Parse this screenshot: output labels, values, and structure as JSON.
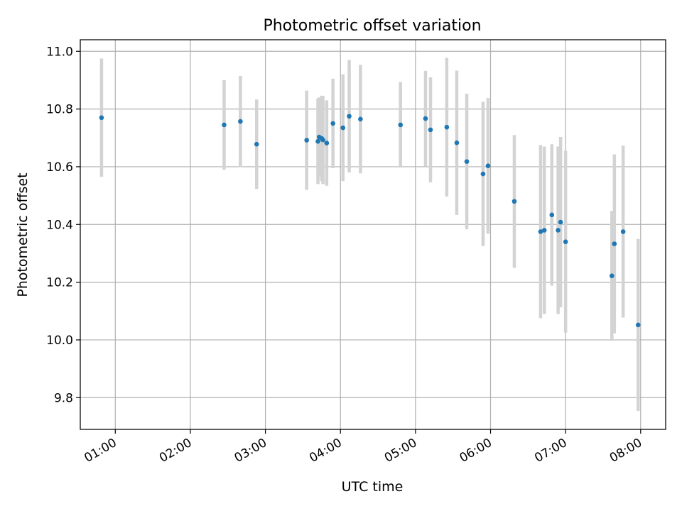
{
  "chart_data": {
    "type": "scatter",
    "title": "Photometric offset variation",
    "xlabel": "UTC time",
    "ylabel": "Photometric offset",
    "x_ticks": [
      "01:00",
      "02:00",
      "03:00",
      "04:00",
      "05:00",
      "06:00",
      "07:00",
      "08:00"
    ],
    "y_ticks": [
      "9.8",
      "10.0",
      "10.2",
      "10.4",
      "10.6",
      "10.8",
      "11.0"
    ],
    "xlim": [
      "00:32",
      "08:20"
    ],
    "ylim": [
      9.69,
      11.04
    ],
    "grid": true,
    "colors": {
      "point": "#1f77b4",
      "errorbar": "#d3d3d3",
      "grid": "#b0b0b0"
    },
    "points": [
      {
        "t": "00:49",
        "y": 10.77,
        "err": 0.205
      },
      {
        "t": "02:27",
        "y": 10.745,
        "err": 0.155
      },
      {
        "t": "02:40",
        "y": 10.757,
        "err": 0.158
      },
      {
        "t": "02:53",
        "y": 10.678,
        "err": 0.155
      },
      {
        "t": "03:33",
        "y": 10.692,
        "err": 0.172
      },
      {
        "t": "03:42",
        "y": 10.688,
        "err": 0.148
      },
      {
        "t": "03:43",
        "y": 10.703,
        "err": 0.137
      },
      {
        "t": "03:45",
        "y": 10.698,
        "err": 0.148
      },
      {
        "t": "03:46",
        "y": 10.693,
        "err": 0.153
      },
      {
        "t": "03:49",
        "y": 10.682,
        "err": 0.148
      },
      {
        "t": "03:54",
        "y": 10.75,
        "err": 0.155
      },
      {
        "t": "04:02",
        "y": 10.735,
        "err": 0.185
      },
      {
        "t": "04:07",
        "y": 10.775,
        "err": 0.195
      },
      {
        "t": "04:16",
        "y": 10.765,
        "err": 0.188
      },
      {
        "t": "04:48",
        "y": 10.745,
        "err": 0.148
      },
      {
        "t": "05:08",
        "y": 10.767,
        "err": 0.165
      },
      {
        "t": "05:12",
        "y": 10.728,
        "err": 0.182
      },
      {
        "t": "05:25",
        "y": 10.737,
        "err": 0.24
      },
      {
        "t": "05:33",
        "y": 10.683,
        "err": 0.25
      },
      {
        "t": "05:41",
        "y": 10.618,
        "err": 0.235
      },
      {
        "t": "05:54",
        "y": 10.575,
        "err": 0.25
      },
      {
        "t": "05:58",
        "y": 10.603,
        "err": 0.235
      },
      {
        "t": "06:19",
        "y": 10.48,
        "err": 0.23
      },
      {
        "t": "06:40",
        "y": 10.375,
        "err": 0.3
      },
      {
        "t": "06:43",
        "y": 10.38,
        "err": 0.29
      },
      {
        "t": "06:49",
        "y": 10.433,
        "err": 0.245
      },
      {
        "t": "06:54",
        "y": 10.38,
        "err": 0.29
      },
      {
        "t": "06:56",
        "y": 10.408,
        "err": 0.295
      },
      {
        "t": "07:00",
        "y": 10.34,
        "err": 0.315
      },
      {
        "t": "07:37",
        "y": 10.222,
        "err": 0.225
      },
      {
        "t": "07:39",
        "y": 10.333,
        "err": 0.31
      },
      {
        "t": "07:46",
        "y": 10.375,
        "err": 0.298
      },
      {
        "t": "07:58",
        "y": 10.052,
        "err": 0.298
      }
    ]
  }
}
